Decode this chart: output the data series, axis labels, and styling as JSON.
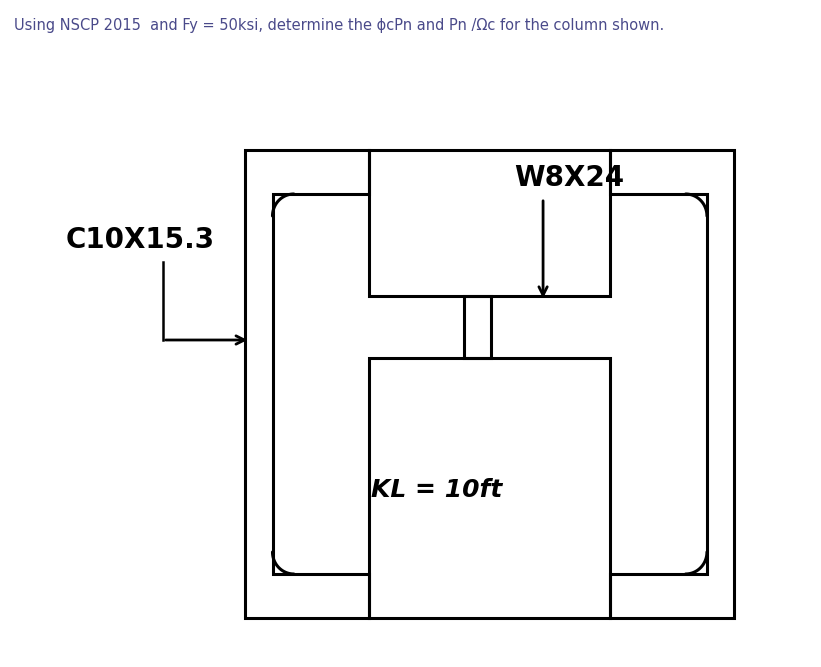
{
  "title_text": "Using NSCP 2015  and Fy = 50ksi, determine the ϕcPn and Pn /Ωc for the column shown.",
  "title_color": "#4a4a8a",
  "title_fontsize": 10.5,
  "label_W8X24": "W8X24",
  "label_C10X15": "C10X15.3",
  "label_KL": "KL = 10ft",
  "bg_color": "#ffffff",
  "line_color": "#000000",
  "line_width": 2.2,
  "fig_width": 8.21,
  "fig_height": 6.67,
  "dpi": 100
}
